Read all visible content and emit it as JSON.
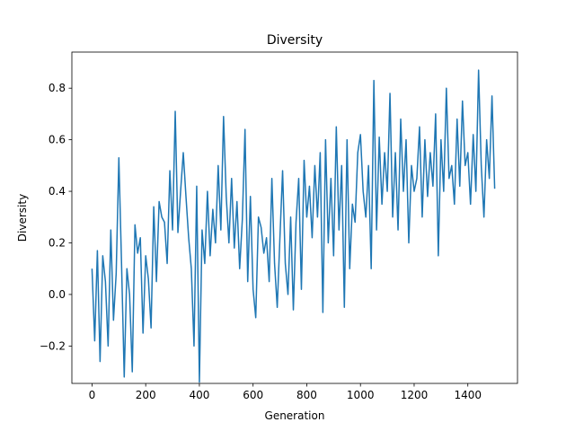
{
  "chart_data": {
    "type": "line",
    "title": "Diversity",
    "xlabel": "Generation",
    "ylabel": "Diversity",
    "xlim": [
      -75,
      1585
    ],
    "ylim": [
      -0.345,
      0.94
    ],
    "xticks": [
      0,
      200,
      400,
      600,
      800,
      1000,
      1200,
      1400
    ],
    "xtick_labels": [
      "0",
      "200",
      "400",
      "600",
      "800",
      "1000",
      "1200",
      "1400"
    ],
    "yticks": [
      -0.2,
      0.0,
      0.2,
      0.4,
      0.6,
      0.8
    ],
    "ytick_labels": [
      "−0.2",
      "0.0",
      "0.2",
      "0.4",
      "0.6",
      "0.8"
    ],
    "grid": false,
    "legend": "none",
    "series": [
      {
        "color": "#1f77b4",
        "x_start": 0,
        "x_step": 10,
        "values": [
          0.1,
          -0.18,
          0.17,
          -0.26,
          0.15,
          0.05,
          -0.2,
          0.25,
          -0.1,
          0.08,
          0.53,
          0.12,
          -0.32,
          0.1,
          0.0,
          -0.3,
          0.27,
          0.16,
          0.22,
          -0.15,
          0.15,
          0.06,
          -0.13,
          0.34,
          0.05,
          0.36,
          0.3,
          0.28,
          0.12,
          0.48,
          0.25,
          0.71,
          0.24,
          0.4,
          0.55,
          0.38,
          0.22,
          0.1,
          -0.2,
          0.42,
          -0.34,
          0.25,
          0.12,
          0.4,
          0.15,
          0.33,
          0.2,
          0.5,
          0.25,
          0.69,
          0.38,
          0.2,
          0.45,
          0.18,
          0.36,
          0.1,
          0.29,
          0.64,
          0.05,
          0.38,
          0.02,
          -0.09,
          0.3,
          0.26,
          0.16,
          0.22,
          0.05,
          0.45,
          0.12,
          -0.05,
          0.22,
          0.48,
          0.12,
          0.0,
          0.3,
          -0.06,
          0.28,
          0.45,
          0.02,
          0.52,
          0.3,
          0.42,
          0.22,
          0.5,
          0.3,
          0.55,
          -0.07,
          0.6,
          0.2,
          0.45,
          0.15,
          0.65,
          0.25,
          0.5,
          -0.05,
          0.6,
          0.1,
          0.35,
          0.28,
          0.55,
          0.62,
          0.4,
          0.3,
          0.5,
          0.1,
          0.83,
          0.25,
          0.61,
          0.35,
          0.55,
          0.4,
          0.78,
          0.3,
          0.55,
          0.25,
          0.68,
          0.4,
          0.6,
          0.2,
          0.5,
          0.4,
          0.45,
          0.65,
          0.3,
          0.6,
          0.38,
          0.55,
          0.42,
          0.7,
          0.15,
          0.6,
          0.4,
          0.8,
          0.45,
          0.5,
          0.35,
          0.68,
          0.42,
          0.75,
          0.5,
          0.55,
          0.35,
          0.62,
          0.4,
          0.87,
          0.5,
          0.3,
          0.6,
          0.45,
          0.77,
          0.41
        ]
      }
    ]
  }
}
